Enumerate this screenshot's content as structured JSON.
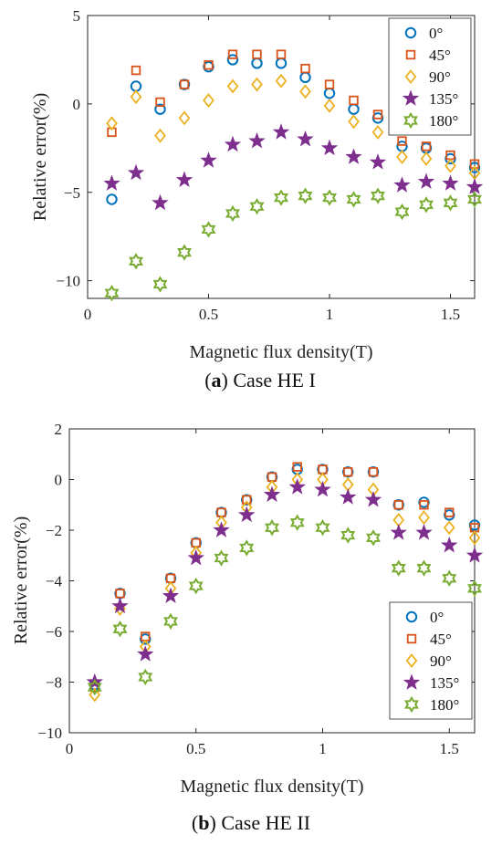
{
  "chart_data": [
    {
      "type": "scatter",
      "caption_letter": "a",
      "caption_text": "Case HE I",
      "xlabel": "Magnetic flux density(T)",
      "ylabel": "Relative error(%)",
      "xlim": [
        0,
        1.6
      ],
      "ylim": [
        -11,
        5
      ],
      "xticks": [
        0,
        0.5,
        1,
        1.5
      ],
      "xtick_labels": [
        "0",
        "0.5",
        "1",
        "1.5"
      ],
      "yticks": [
        -10,
        -5,
        0,
        5
      ],
      "ytick_labels": [
        "−10",
        "−5",
        "0",
        "5"
      ],
      "legend_position": "top-right",
      "x": [
        0.1,
        0.2,
        0.3,
        0.4,
        0.5,
        0.6,
        0.7,
        0.8,
        0.9,
        1.0,
        1.1,
        1.2,
        1.3,
        1.4,
        1.5,
        1.6
      ],
      "series": [
        {
          "name": "0°",
          "marker": "circle",
          "color": "#0072BD",
          "values": [
            -5.4,
            1.0,
            -0.3,
            1.1,
            2.1,
            2.5,
            2.3,
            2.3,
            1.5,
            0.6,
            -0.3,
            -0.8,
            -2.4,
            -2.5,
            -3.1,
            -3.6
          ]
        },
        {
          "name": "45°",
          "marker": "square",
          "color": "#D95319",
          "values": [
            -1.6,
            1.9,
            0.1,
            1.1,
            2.2,
            2.8,
            2.8,
            2.8,
            2.0,
            1.1,
            0.2,
            -0.6,
            -2.1,
            -2.4,
            -2.9,
            -3.4
          ]
        },
        {
          "name": "90°",
          "marker": "diamond",
          "color": "#EDB120",
          "values": [
            -1.1,
            0.4,
            -1.8,
            -0.8,
            0.2,
            1.0,
            1.1,
            1.3,
            0.7,
            -0.1,
            -1.0,
            -1.6,
            -3.0,
            -3.1,
            -3.5,
            -3.9
          ]
        },
        {
          "name": "135°",
          "marker": "star5",
          "color": "#7E2F8E",
          "values": [
            -4.5,
            -3.9,
            -5.6,
            -4.3,
            -3.2,
            -2.3,
            -2.1,
            -1.6,
            -2.0,
            -2.5,
            -3.0,
            -3.3,
            -4.6,
            -4.4,
            -4.5,
            -4.7
          ]
        },
        {
          "name": "180°",
          "marker": "star6",
          "color": "#77AC30",
          "values": [
            -10.7,
            -8.9,
            -10.2,
            -8.4,
            -7.1,
            -6.2,
            -5.8,
            -5.3,
            -5.2,
            -5.3,
            -5.4,
            -5.2,
            -6.1,
            -5.7,
            -5.6,
            -5.4
          ]
        }
      ]
    },
    {
      "type": "scatter",
      "caption_letter": "b",
      "caption_text": "Case HE II",
      "xlabel": "Magnetic flux density(T)",
      "ylabel": "Relative error(%)",
      "xlim": [
        0,
        1.6
      ],
      "ylim": [
        -10,
        2
      ],
      "xticks": [
        0,
        0.5,
        1,
        1.5
      ],
      "xtick_labels": [
        "0",
        "0.5",
        "1",
        "1.5"
      ],
      "yticks": [
        -10,
        -8,
        -6,
        -4,
        -2,
        0,
        2
      ],
      "ytick_labels": [
        "−10",
        "−8",
        "−6",
        "−4",
        "−2",
        "0",
        "2"
      ],
      "legend_position": "bottom-right",
      "x": [
        0.1,
        0.2,
        0.3,
        0.4,
        0.5,
        0.6,
        0.7,
        0.8,
        0.9,
        1.0,
        1.1,
        1.2,
        1.3,
        1.4,
        1.5,
        1.6
      ],
      "series": [
        {
          "name": "0°",
          "marker": "circle",
          "color": "#0072BD",
          "values": [
            -8.1,
            -4.5,
            -6.3,
            -3.9,
            -2.5,
            -1.3,
            -0.8,
            0.1,
            0.4,
            0.4,
            0.3,
            0.3,
            -1.0,
            -0.9,
            -1.4,
            -1.8
          ]
        },
        {
          "name": "45°",
          "marker": "square",
          "color": "#D95319",
          "values": [
            -8.2,
            -4.5,
            -6.2,
            -3.9,
            -2.5,
            -1.3,
            -0.8,
            0.1,
            0.5,
            0.4,
            0.3,
            0.3,
            -1.0,
            -1.0,
            -1.3,
            -1.9
          ]
        },
        {
          "name": "90°",
          "marker": "diamond",
          "color": "#EDB120",
          "values": [
            -8.5,
            -5.1,
            -6.6,
            -4.3,
            -2.9,
            -1.7,
            -1.1,
            -0.3,
            0.0,
            0.0,
            -0.2,
            -0.4,
            -1.6,
            -1.5,
            -1.9,
            -2.3
          ]
        },
        {
          "name": "135°",
          "marker": "star5",
          "color": "#7E2F8E",
          "values": [
            -8.0,
            -5.0,
            -6.9,
            -4.6,
            -3.1,
            -2.0,
            -1.4,
            -0.6,
            -0.3,
            -0.4,
            -0.7,
            -0.8,
            -2.1,
            -2.1,
            -2.6,
            -3.0
          ]
        },
        {
          "name": "180°",
          "marker": "star6",
          "color": "#77AC30",
          "values": [
            -8.2,
            -5.9,
            -7.8,
            -5.6,
            -4.2,
            -3.1,
            -2.7,
            -1.9,
            -1.7,
            -1.9,
            -2.2,
            -2.3,
            -3.5,
            -3.5,
            -3.9,
            -4.3
          ]
        }
      ]
    }
  ]
}
